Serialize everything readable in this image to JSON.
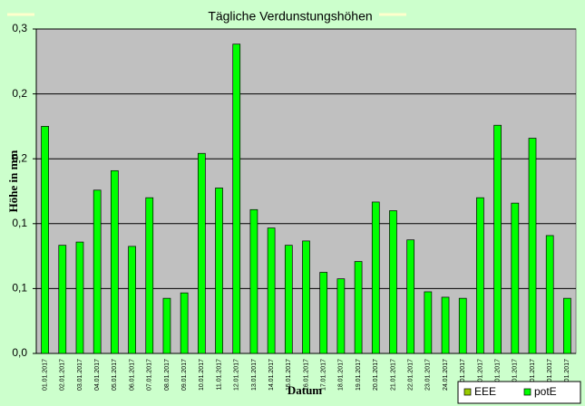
{
  "chart_data": {
    "type": "bar",
    "title": "Tägliche Verdunstungshöhen",
    "x_label": "Datum",
    "y_label": "Höhe in mm",
    "categories": [
      "01.01.2017",
      "02.01.2017",
      "03.01.2017",
      "04.01.2017",
      "05.01.2017",
      "06.01.2017",
      "07.01.2017",
      "08.01.2017",
      "09.01.2017",
      "10.01.2017",
      "11.01.2017",
      "12.01.2017",
      "13.01.2017",
      "14.01.2017",
      "15.01.2017",
      "16.01.2017",
      "17.01.2017",
      "18.01.2017",
      "19.01.2017",
      "20.01.2017",
      "21.01.2017",
      "22.01.2017",
      "23.01.2017",
      "24.01.2017",
      "25.01.2017",
      "26.01.2017",
      "27.01.2017",
      "28.01.2017",
      "29.01.2017",
      "30.01.2017",
      "31.01.2017"
    ],
    "series": [
      {
        "name": "EEE",
        "color": "#99cc00",
        "values": [
          null,
          null,
          null,
          null,
          null,
          null,
          null,
          null,
          null,
          null,
          null,
          null,
          null,
          null,
          null,
          null,
          null,
          null,
          null,
          null,
          null,
          null,
          null,
          null,
          null,
          null,
          null,
          null,
          null,
          null,
          null
        ]
      },
      {
        "name": "potE",
        "color": "#00ff00",
        "values": [
          0.21,
          0.1,
          0.103,
          0.151,
          0.169,
          0.099,
          0.144,
          0.051,
          0.056,
          0.185,
          0.153,
          0.286,
          0.133,
          0.116,
          0.1,
          0.104,
          0.075,
          0.069,
          0.085,
          0.14,
          0.132,
          0.105,
          0.057,
          0.052,
          0.051,
          0.144,
          0.211,
          0.139,
          0.199,
          0.109,
          0.051
        ]
      }
    ],
    "ylim": [
      0,
      0.3
    ],
    "yticks": [
      {
        "value": 0,
        "label": "0,0"
      },
      {
        "value": 0.06,
        "label": "0,1"
      },
      {
        "value": 0.12,
        "label": "0,1"
      },
      {
        "value": 0.18,
        "label": "0,2"
      },
      {
        "value": 0.24,
        "label": "0,2"
      },
      {
        "value": 0.3,
        "label": "0,3"
      }
    ],
    "grid": true,
    "legend": "bottom-right"
  }
}
